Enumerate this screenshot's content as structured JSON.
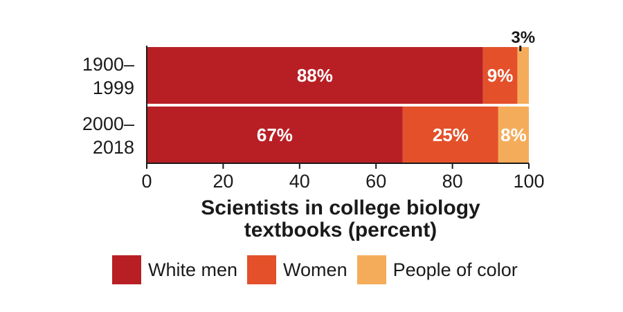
{
  "chart_data": {
    "type": "bar",
    "orientation": "horizontal",
    "stacked": true,
    "categories": [
      [
        "1900–",
        "1999"
      ],
      [
        "2000–",
        "2018"
      ]
    ],
    "series": [
      {
        "name": "White men",
        "color": "#b81f25",
        "values": [
          88,
          67
        ],
        "labels": [
          "88%",
          "67%"
        ]
      },
      {
        "name": "Women",
        "color": "#e4502a",
        "values": [
          9,
          25
        ],
        "labels": [
          "9%",
          "25%"
        ]
      },
      {
        "name": "People of color",
        "color": "#f5ac5a",
        "values": [
          3,
          8
        ],
        "labels": [
          "3%",
          "8%"
        ]
      }
    ],
    "xlabel": [
      "Scientists in college biology",
      "textbooks (percent)"
    ],
    "xlim": [
      0,
      100
    ],
    "xticks": [
      0,
      20,
      40,
      60,
      80,
      100
    ],
    "legend_position": "bottom",
    "grid": false
  }
}
